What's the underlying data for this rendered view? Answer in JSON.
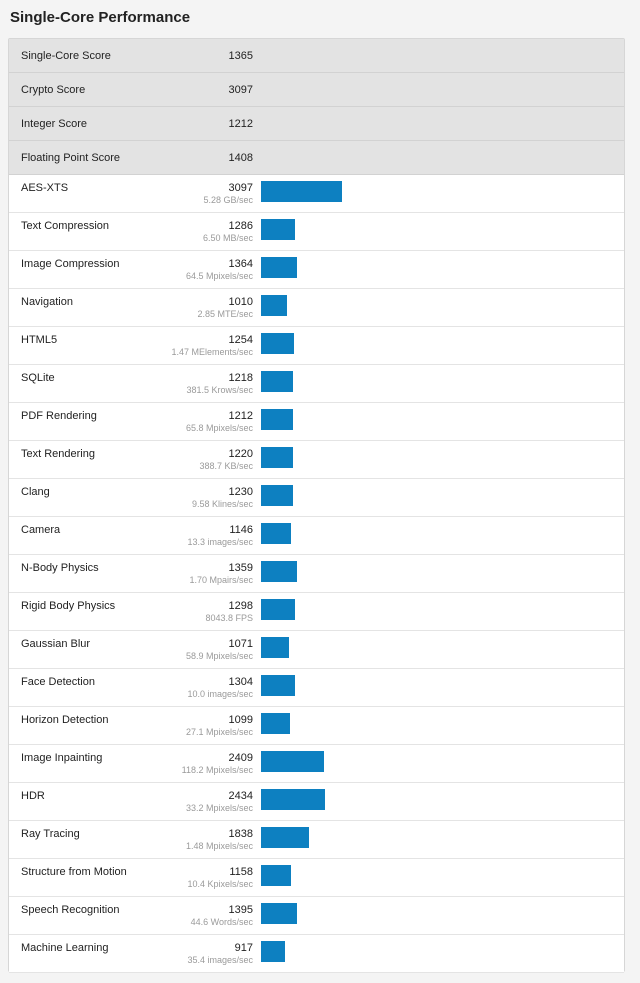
{
  "page": {
    "title": "Single-Core Performance"
  },
  "colors": {
    "bar": "#0d80c1",
    "summary_bg": "#e3e3e3"
  },
  "summary": [
    {
      "label": "Single-Core Score",
      "score": "1365"
    },
    {
      "label": "Crypto Score",
      "score": "3097"
    },
    {
      "label": "Integer Score",
      "score": "1212"
    },
    {
      "label": "Floating Point Score",
      "score": "1408"
    }
  ],
  "bar_scale_max": 3097,
  "benchmarks": [
    {
      "name": "AES-XTS",
      "score": 3097,
      "rate": "5.28 GB/sec"
    },
    {
      "name": "Text Compression",
      "score": 1286,
      "rate": "6.50 MB/sec"
    },
    {
      "name": "Image Compression",
      "score": 1364,
      "rate": "64.5 Mpixels/sec"
    },
    {
      "name": "Navigation",
      "score": 1010,
      "rate": "2.85 MTE/sec"
    },
    {
      "name": "HTML5",
      "score": 1254,
      "rate": "1.47 MElements/sec"
    },
    {
      "name": "SQLite",
      "score": 1218,
      "rate": "381.5 Krows/sec"
    },
    {
      "name": "PDF Rendering",
      "score": 1212,
      "rate": "65.8 Mpixels/sec"
    },
    {
      "name": "Text Rendering",
      "score": 1220,
      "rate": "388.7 KB/sec"
    },
    {
      "name": "Clang",
      "score": 1230,
      "rate": "9.58 Klines/sec"
    },
    {
      "name": "Camera",
      "score": 1146,
      "rate": "13.3 images/sec"
    },
    {
      "name": "N-Body Physics",
      "score": 1359,
      "rate": "1.70 Mpairs/sec"
    },
    {
      "name": "Rigid Body Physics",
      "score": 1298,
      "rate": "8043.8 FPS"
    },
    {
      "name": "Gaussian Blur",
      "score": 1071,
      "rate": "58.9 Mpixels/sec"
    },
    {
      "name": "Face Detection",
      "score": 1304,
      "rate": "10.0 images/sec"
    },
    {
      "name": "Horizon Detection",
      "score": 1099,
      "rate": "27.1 Mpixels/sec"
    },
    {
      "name": "Image Inpainting",
      "score": 2409,
      "rate": "118.2 Mpixels/sec"
    },
    {
      "name": "HDR",
      "score": 2434,
      "rate": "33.2 Mpixels/sec"
    },
    {
      "name": "Ray Tracing",
      "score": 1838,
      "rate": "1.48 Mpixels/sec"
    },
    {
      "name": "Structure from Motion",
      "score": 1158,
      "rate": "10.4 Kpixels/sec"
    },
    {
      "name": "Speech Recognition",
      "score": 1395,
      "rate": "44.6 Words/sec"
    },
    {
      "name": "Machine Learning",
      "score": 917,
      "rate": "35.4 images/sec"
    }
  ]
}
